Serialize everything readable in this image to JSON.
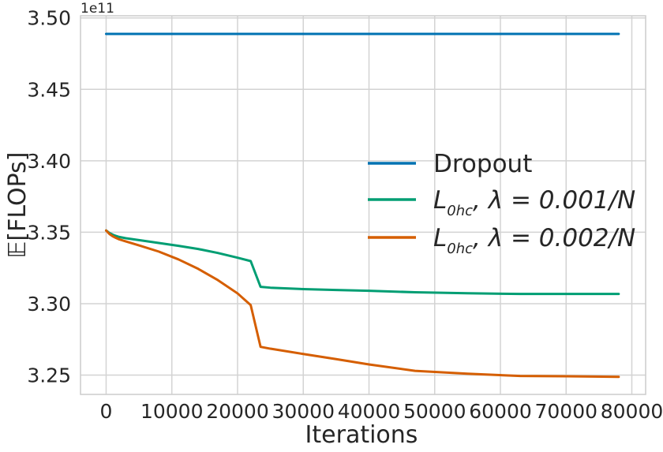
{
  "chart_data": {
    "type": "line",
    "title": "",
    "xlabel": "Iterations",
    "ylabel": "𝔼[FLOPs]",
    "y_exponent": "1e11",
    "xlim": [
      -3900,
      82100
    ],
    "ylim": [
      3.2365,
      3.5015
    ],
    "xticks": [
      0,
      10000,
      20000,
      30000,
      40000,
      50000,
      60000,
      70000,
      80000
    ],
    "xtick_labels": [
      "0",
      "10000",
      "20000",
      "30000",
      "40000",
      "50000",
      "60000",
      "70000",
      "80000"
    ],
    "yticks": [
      3.25,
      3.3,
      3.35,
      3.4,
      3.45,
      3.5
    ],
    "ytick_labels": [
      "3.25",
      "3.30",
      "3.35",
      "3.40",
      "3.45",
      "3.50"
    ],
    "grid": true,
    "legend_position": "center-right",
    "series": [
      {
        "name": "Dropout",
        "legend_main": "Dropout",
        "legend_sub": "",
        "legend_tail": "",
        "color": "#0072b2",
        "x": [
          0,
          78000
        ],
        "y": [
          3.4888,
          3.4888
        ]
      },
      {
        "name": "L0hc, λ = 0.001/N",
        "legend_main": "L",
        "legend_sub": "0hc",
        "legend_tail": ", λ = 0.001/N",
        "color": "#009e73",
        "x": [
          0,
          500,
          1000,
          1500,
          2000,
          3000,
          5000,
          8000,
          11000,
          14000,
          17000,
          20000,
          22000,
          23500,
          25000,
          30000,
          35000,
          40000,
          47000,
          55000,
          63000,
          70000,
          78000
        ],
        "y": [
          3.3512,
          3.3495,
          3.3483,
          3.3474,
          3.3467,
          3.3458,
          3.3445,
          3.3425,
          3.3405,
          3.3383,
          3.3355,
          3.3322,
          3.3298,
          3.3118,
          3.3112,
          3.3102,
          3.3096,
          3.309,
          3.308,
          3.3073,
          3.3068,
          3.3068,
          3.3068
        ]
      },
      {
        "name": "L0hc, λ = 0.002/N",
        "legend_main": "L",
        "legend_sub": "0hc",
        "legend_tail": ", λ = 0.002/N",
        "color": "#d55e00",
        "x": [
          0,
          500,
          1000,
          1500,
          2000,
          3000,
          5000,
          8000,
          11000,
          14000,
          17000,
          20000,
          22000,
          23500,
          25000,
          30000,
          35000,
          40000,
          47000,
          55000,
          63000,
          70000,
          78000
        ],
        "y": [
          3.3512,
          3.3488,
          3.3472,
          3.346,
          3.345,
          3.3436,
          3.3408,
          3.3365,
          3.331,
          3.3244,
          3.3165,
          3.3072,
          3.299,
          3.2698,
          3.2685,
          3.2648,
          3.2612,
          3.2575,
          3.253,
          3.251,
          3.2494,
          3.2492,
          3.2488
        ]
      }
    ]
  }
}
